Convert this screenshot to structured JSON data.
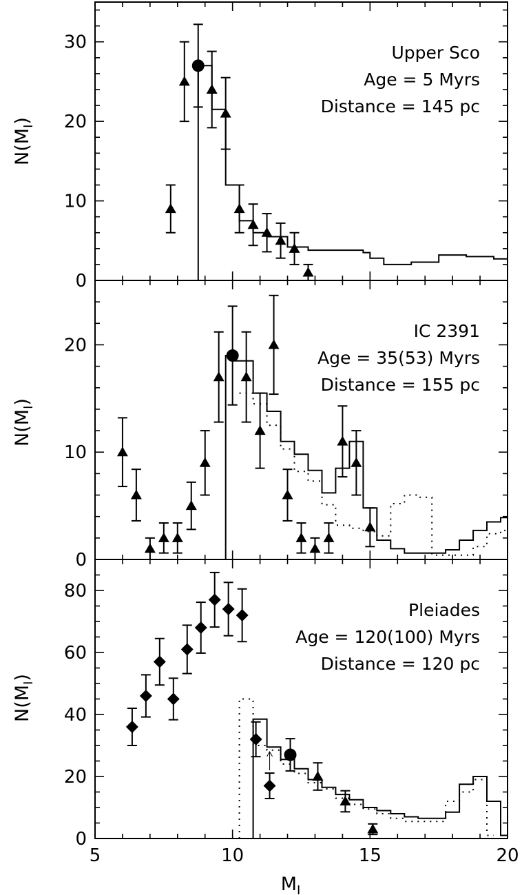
{
  "figure": {
    "xlabel": "M",
    "xlabel_sub": "I",
    "ylabel": "N(M",
    "ylabel_sub": "I",
    "ylabel_close": ")"
  },
  "chart_data": [
    {
      "type": "line",
      "panel": "upper-sco",
      "annotations": [
        "Upper Sco",
        "Age = 5 Myrs",
        "Distance = 145 pc"
      ],
      "xlim": [
        5,
        20
      ],
      "ylim": [
        0,
        35
      ],
      "x_ticks": [
        5,
        10,
        15,
        20
      ],
      "y_ticks": [
        0,
        10,
        20,
        30
      ],
      "model_solid_steps": [
        [
          8.75,
          0
        ],
        [
          8.75,
          27
        ],
        [
          9.25,
          27
        ],
        [
          9.25,
          21.5
        ],
        [
          9.75,
          21.5
        ],
        [
          9.75,
          12
        ],
        [
          10.25,
          12
        ],
        [
          10.25,
          7.5
        ],
        [
          10.75,
          7.5
        ],
        [
          10.75,
          6
        ],
        [
          11.25,
          6
        ],
        [
          11.25,
          5.5
        ],
        [
          12,
          5.5
        ],
        [
          12,
          4.2
        ],
        [
          12.75,
          4.2
        ],
        [
          12.75,
          3.8
        ],
        [
          14.75,
          3.8
        ],
        [
          14.75,
          3.5
        ],
        [
          15,
          3.5
        ],
        [
          15,
          2.8
        ],
        [
          15.5,
          2.8
        ],
        [
          15.5,
          2
        ],
        [
          16.5,
          2
        ],
        [
          16.5,
          2.3
        ],
        [
          17.5,
          2.3
        ],
        [
          17.5,
          3.2
        ],
        [
          18.5,
          3.2
        ],
        [
          18.5,
          3
        ],
        [
          19.5,
          3
        ],
        [
          19.5,
          2.7
        ],
        [
          20,
          2.7
        ]
      ],
      "triangles": [
        {
          "x": 7.75,
          "y": 9,
          "yerr": 3
        },
        {
          "x": 8.25,
          "y": 25,
          "yerr": 5
        },
        {
          "x": 9.25,
          "y": 24,
          "yerr": 4.8
        },
        {
          "x": 9.75,
          "y": 21,
          "yerr": 4.5
        },
        {
          "x": 10.25,
          "y": 9,
          "yerr": 3
        },
        {
          "x": 10.75,
          "y": 7,
          "yerr": 2.6
        },
        {
          "x": 11.25,
          "y": 6,
          "yerr": 2.4
        },
        {
          "x": 11.75,
          "y": 5,
          "yerr": 2.2
        },
        {
          "x": 12.25,
          "y": 4,
          "yerr": 2
        },
        {
          "x": 12.75,
          "y": 1,
          "yerr": 1
        }
      ],
      "circles": [
        {
          "x": 8.75,
          "y": 27,
          "yerr": 5.2
        }
      ]
    },
    {
      "type": "line",
      "panel": "ic-2391",
      "annotations": [
        "IC 2391",
        "Age = 35(53) Myrs",
        "Distance = 155 pc"
      ],
      "xlim": [
        5,
        20
      ],
      "ylim": [
        0,
        26
      ],
      "x_ticks": [
        5,
        10,
        15,
        20
      ],
      "y_ticks": [
        0,
        10,
        20
      ],
      "model_solid_steps": [
        [
          9.75,
          0
        ],
        [
          9.75,
          19
        ],
        [
          10,
          19
        ],
        [
          10,
          18.5
        ],
        [
          10.75,
          18.5
        ],
        [
          10.75,
          15.5
        ],
        [
          11.25,
          15.5
        ],
        [
          11.25,
          13.8
        ],
        [
          11.75,
          13.8
        ],
        [
          11.75,
          11
        ],
        [
          12.25,
          11
        ],
        [
          12.25,
          9.8
        ],
        [
          12.75,
          9.8
        ],
        [
          12.75,
          8.3
        ],
        [
          13.25,
          8.3
        ],
        [
          13.25,
          6.2
        ],
        [
          13.75,
          6.2
        ],
        [
          13.75,
          8.5
        ],
        [
          14.25,
          8.5
        ],
        [
          14.25,
          11
        ],
        [
          14.75,
          11
        ],
        [
          14.75,
          4.8
        ],
        [
          15.25,
          4.8
        ],
        [
          15.25,
          1.8
        ],
        [
          15.75,
          1.8
        ],
        [
          15.75,
          1
        ],
        [
          16.25,
          1
        ],
        [
          16.25,
          0.6
        ],
        [
          17.75,
          0.6
        ],
        [
          17.75,
          0.9
        ],
        [
          18.25,
          0.9
        ],
        [
          18.25,
          1.8
        ],
        [
          18.75,
          1.8
        ],
        [
          18.75,
          2.7
        ],
        [
          19.25,
          2.7
        ],
        [
          19.25,
          3.5
        ],
        [
          19.75,
          3.5
        ],
        [
          19.75,
          3.9
        ],
        [
          20,
          3.9
        ]
      ],
      "model_dotted_steps": [
        [
          10.25,
          15.5
        ],
        [
          10.75,
          15.5
        ],
        [
          10.75,
          14.5
        ],
        [
          11.25,
          14.5
        ],
        [
          11.25,
          12.5
        ],
        [
          11.75,
          12.5
        ],
        [
          11.75,
          10.3
        ],
        [
          12.25,
          10.3
        ],
        [
          12.25,
          8.2
        ],
        [
          12.75,
          8.2
        ],
        [
          12.75,
          7.3
        ],
        [
          13.25,
          7.3
        ],
        [
          13.25,
          5.1
        ],
        [
          13.75,
          5.1
        ],
        [
          13.75,
          3.2
        ],
        [
          14.25,
          3.2
        ],
        [
          14.25,
          2.9
        ],
        [
          14.75,
          2.9
        ],
        [
          14.75,
          2.6
        ],
        [
          15.25,
          2.6
        ],
        [
          15.25,
          2.2
        ],
        [
          15.75,
          2.2
        ],
        [
          15.75,
          5.2
        ],
        [
          16.25,
          5.2
        ],
        [
          16.25,
          6
        ],
        [
          16.75,
          6
        ],
        [
          16.75,
          5.8
        ],
        [
          17.25,
          5.8
        ],
        [
          17.25,
          0.4
        ],
        [
          18.75,
          0.4
        ],
        [
          18.75,
          1.2
        ],
        [
          19.25,
          1.2
        ],
        [
          19.25,
          2.4
        ],
        [
          19.75,
          2.4
        ],
        [
          19.75,
          2.7
        ],
        [
          20,
          2.7
        ]
      ],
      "triangles": [
        {
          "x": 6,
          "y": 10,
          "yerr": 3.2
        },
        {
          "x": 6.5,
          "y": 6,
          "yerr": 2.4
        },
        {
          "x": 7,
          "y": 1,
          "yerr": 1
        },
        {
          "x": 7.5,
          "y": 2,
          "yerr": 1.4
        },
        {
          "x": 8,
          "y": 2,
          "yerr": 1.4
        },
        {
          "x": 8.5,
          "y": 5,
          "yerr": 2.2
        },
        {
          "x": 9,
          "y": 9,
          "yerr": 3
        },
        {
          "x": 9.5,
          "y": 17,
          "yerr": 4.2
        },
        {
          "x": 10.5,
          "y": 17,
          "yerr": 4.2
        },
        {
          "x": 11,
          "y": 12,
          "yerr": 3.5
        },
        {
          "x": 11.5,
          "y": 20,
          "yerr": 4.6
        },
        {
          "x": 12,
          "y": 6,
          "yerr": 2.4
        },
        {
          "x": 12.5,
          "y": 2,
          "yerr": 1.4
        },
        {
          "x": 13,
          "y": 1,
          "yerr": 1
        },
        {
          "x": 13.5,
          "y": 2,
          "yerr": 1.4
        },
        {
          "x": 14,
          "y": 11,
          "yerr": 3.3
        },
        {
          "x": 14.5,
          "y": 9,
          "yerr": 3
        },
        {
          "x": 15,
          "y": 3,
          "yerr": 1.8
        }
      ],
      "circles": [
        {
          "x": 10,
          "y": 19,
          "yerr": 4.6
        }
      ]
    },
    {
      "type": "line",
      "panel": "pleiades",
      "annotations": [
        "Pleiades",
        "Age = 120(100) Myrs",
        "Distance = 120 pc"
      ],
      "xlim": [
        5,
        20
      ],
      "ylim": [
        0,
        90
      ],
      "x_ticks": [
        5,
        10,
        15,
        20
      ],
      "y_ticks": [
        0,
        20,
        40,
        60,
        80
      ],
      "model_solid_steps": [
        [
          10.75,
          0
        ],
        [
          10.75,
          38.5
        ],
        [
          11.25,
          38.5
        ],
        [
          11.25,
          29.5
        ],
        [
          11.75,
          29.5
        ],
        [
          11.75,
          25.5
        ],
        [
          12.25,
          25.5
        ],
        [
          12.25,
          22.5
        ],
        [
          12.75,
          22.5
        ],
        [
          12.75,
          19
        ],
        [
          13.25,
          19
        ],
        [
          13.25,
          16.5
        ],
        [
          13.75,
          16.5
        ],
        [
          13.75,
          14.2
        ],
        [
          14.25,
          14.2
        ],
        [
          14.25,
          12.5
        ],
        [
          14.75,
          12.5
        ],
        [
          14.75,
          10
        ],
        [
          15.25,
          10
        ],
        [
          15.25,
          9
        ],
        [
          15.75,
          9
        ],
        [
          15.75,
          8
        ],
        [
          16.25,
          8
        ],
        [
          16.25,
          7
        ],
        [
          16.75,
          7
        ],
        [
          16.75,
          6.5
        ],
        [
          17.75,
          6.5
        ],
        [
          17.75,
          8.5
        ],
        [
          18.25,
          8.5
        ],
        [
          18.25,
          17.5
        ],
        [
          18.75,
          17.5
        ],
        [
          18.75,
          20
        ],
        [
          19.25,
          20
        ],
        [
          19.25,
          12
        ],
        [
          19.75,
          12
        ],
        [
          19.75,
          1
        ],
        [
          20,
          1
        ]
      ],
      "model_dotted_steps": [
        [
          10.25,
          0
        ],
        [
          10.25,
          45
        ],
        [
          10.75,
          45
        ],
        [
          10.75,
          30
        ],
        [
          11.25,
          30
        ],
        [
          11.25,
          28.5
        ],
        [
          11.75,
          28.5
        ],
        [
          11.75,
          24
        ],
        [
          12.25,
          24
        ],
        [
          12.25,
          21
        ],
        [
          12.75,
          21
        ],
        [
          12.75,
          18
        ],
        [
          13.25,
          18
        ],
        [
          13.25,
          16
        ],
        [
          13.75,
          16
        ],
        [
          13.75,
          13
        ],
        [
          14.25,
          13
        ],
        [
          14.25,
          11
        ],
        [
          14.75,
          11
        ],
        [
          14.75,
          9.5
        ],
        [
          15.25,
          9.5
        ],
        [
          15.25,
          8
        ],
        [
          15.75,
          8
        ],
        [
          15.75,
          6.5
        ],
        [
          16.25,
          6.5
        ],
        [
          16.25,
          5.5
        ],
        [
          17.75,
          5.5
        ],
        [
          17.75,
          12
        ],
        [
          18.25,
          12
        ],
        [
          18.25,
          15
        ],
        [
          18.75,
          15
        ],
        [
          18.75,
          19
        ],
        [
          19.25,
          19
        ],
        [
          19.25,
          1
        ],
        [
          19.5,
          1
        ]
      ],
      "diamonds": [
        {
          "x": 6.35,
          "y": 36,
          "yerr": 6
        },
        {
          "x": 6.85,
          "y": 46,
          "yerr": 6.8
        },
        {
          "x": 7.35,
          "y": 57,
          "yerr": 7.5
        },
        {
          "x": 7.85,
          "y": 45,
          "yerr": 6.7
        },
        {
          "x": 8.35,
          "y": 61,
          "yerr": 7.8
        },
        {
          "x": 8.85,
          "y": 68,
          "yerr": 8.2
        },
        {
          "x": 9.35,
          "y": 77,
          "yerr": 8.8
        },
        {
          "x": 9.85,
          "y": 74,
          "yerr": 8.6
        },
        {
          "x": 10.35,
          "y": 72,
          "yerr": 8.5
        },
        {
          "x": 10.85,
          "y": 32,
          "yerr": 5.6
        },
        {
          "x": 11.35,
          "y": 17,
          "yerr": 4.1
        }
      ],
      "circles": [
        {
          "x": 12.1,
          "y": 27,
          "yerr": 5.2
        }
      ],
      "triangles": [
        {
          "x": 13.1,
          "y": 20,
          "yerr": 4.4
        },
        {
          "x": 14.1,
          "y": 12,
          "yerr": 3.4
        },
        {
          "x": 15.1,
          "y": 3,
          "yerr": 1.7
        }
      ],
      "arrow": {
        "x": 11.35,
        "y_from": 22,
        "y_to": 28
      }
    }
  ]
}
